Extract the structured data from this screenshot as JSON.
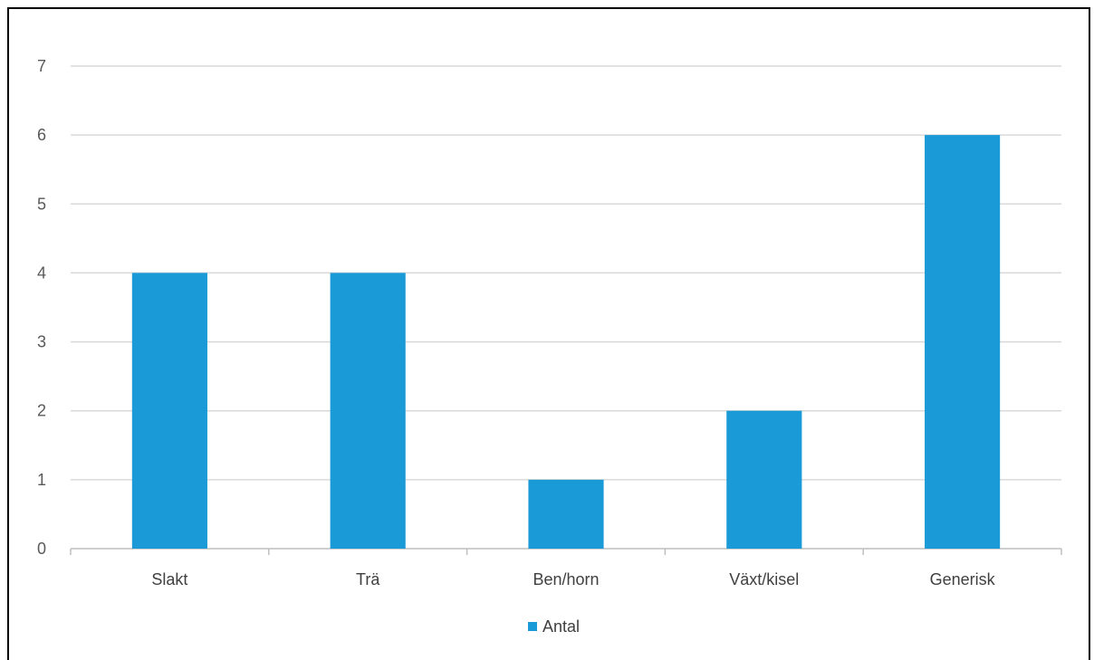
{
  "chart_data": {
    "type": "bar",
    "categories": [
      "Slakt",
      "Trä",
      "Ben/horn",
      "Växt/kisel",
      "Generisk"
    ],
    "series": [
      {
        "name": "Antal",
        "values": [
          4,
          4,
          1,
          2,
          6
        ],
        "color": "#1a9ad6"
      }
    ],
    "title": "",
    "xlabel": "",
    "ylabel": "",
    "ylim": [
      0,
      7
    ],
    "yticks": [
      "0",
      "1",
      "2",
      "3",
      "4",
      "5",
      "6",
      "7"
    ],
    "grid": true,
    "legend": "bottom-center",
    "gridline_color": "#d9d9d9",
    "axis_color": "#bfbfbf"
  }
}
